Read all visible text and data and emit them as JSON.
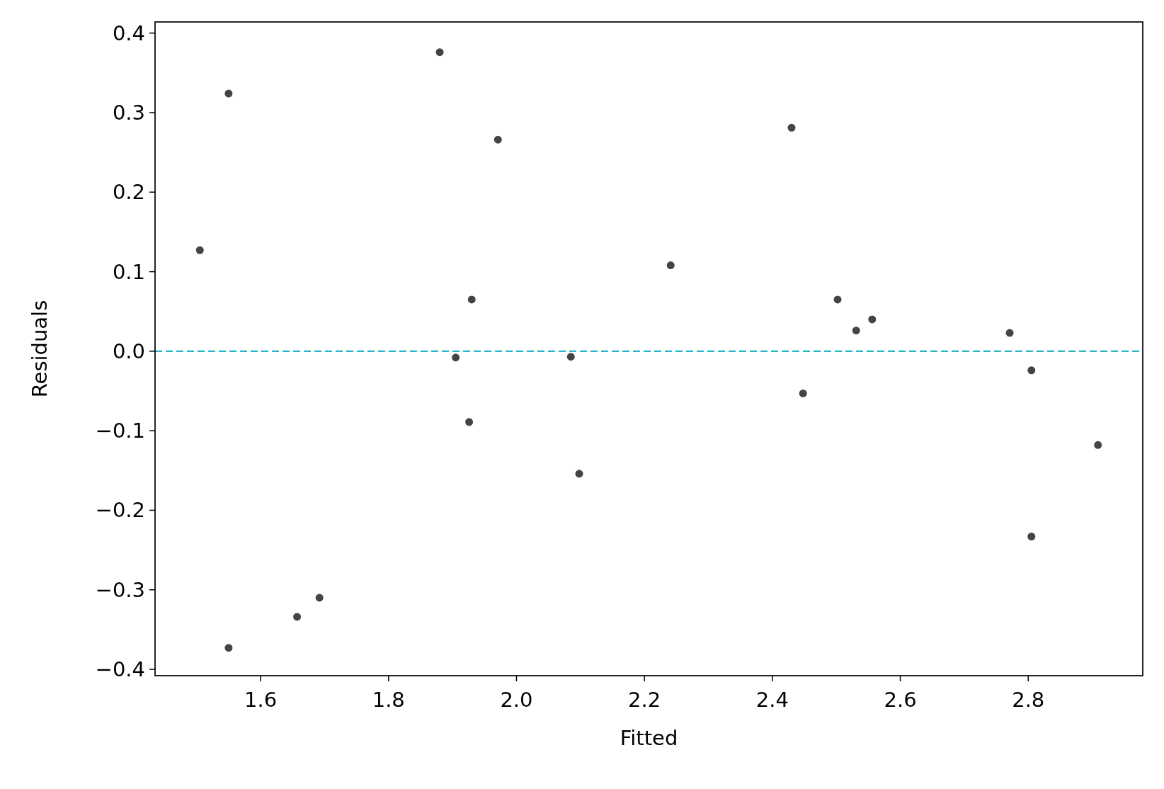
{
  "chart_data": {
    "type": "scatter",
    "xlabel": "Fitted",
    "ylabel": "Residuals",
    "x": [
      1.505,
      1.55,
      1.55,
      1.657,
      1.692,
      1.88,
      1.905,
      1.926,
      1.93,
      1.971,
      2.085,
      2.098,
      2.241,
      2.43,
      2.448,
      2.502,
      2.531,
      2.556,
      2.771,
      2.805,
      2.805,
      2.909
    ],
    "series": [
      {
        "color": "#444444",
        "values": [
          0.127,
          0.324,
          -0.373,
          -0.334,
          -0.31,
          0.376,
          -0.008,
          -0.089,
          0.065,
          0.266,
          -0.007,
          -0.154,
          0.108,
          0.281,
          -0.053,
          0.065,
          0.026,
          0.04,
          0.023,
          -0.024,
          -0.233,
          -0.118
        ]
      }
    ],
    "xlim": [
      1.435,
      2.979
    ],
    "ylim": [
      -0.408,
      0.414
    ],
    "xticks": [
      1.6,
      1.8,
      {
        "value": 2,
        "label": "2.0"
      },
      2.2,
      2.4,
      2.6,
      2.8
    ],
    "yticks": [
      {
        "value": -0.4,
        "label": "−0.4"
      },
      {
        "value": -0.3,
        "label": "−0.3"
      },
      {
        "value": -0.2,
        "label": "−0.2"
      },
      {
        "value": -0.1,
        "label": "−0.1"
      },
      {
        "value": 0,
        "label": "0.0"
      },
      {
        "value": 0.1,
        "label": "0.1"
      },
      {
        "value": 0.2,
        "label": "0.2"
      },
      {
        "value": 0.3,
        "label": "0.3"
      },
      {
        "value": 0.4,
        "label": "0.4"
      }
    ],
    "ref_lines": [
      {
        "axis": "y",
        "value": 0,
        "color": "#2ab5c9",
        "line_style": "dashed"
      }
    ],
    "marker": "circle",
    "grid": false
  }
}
